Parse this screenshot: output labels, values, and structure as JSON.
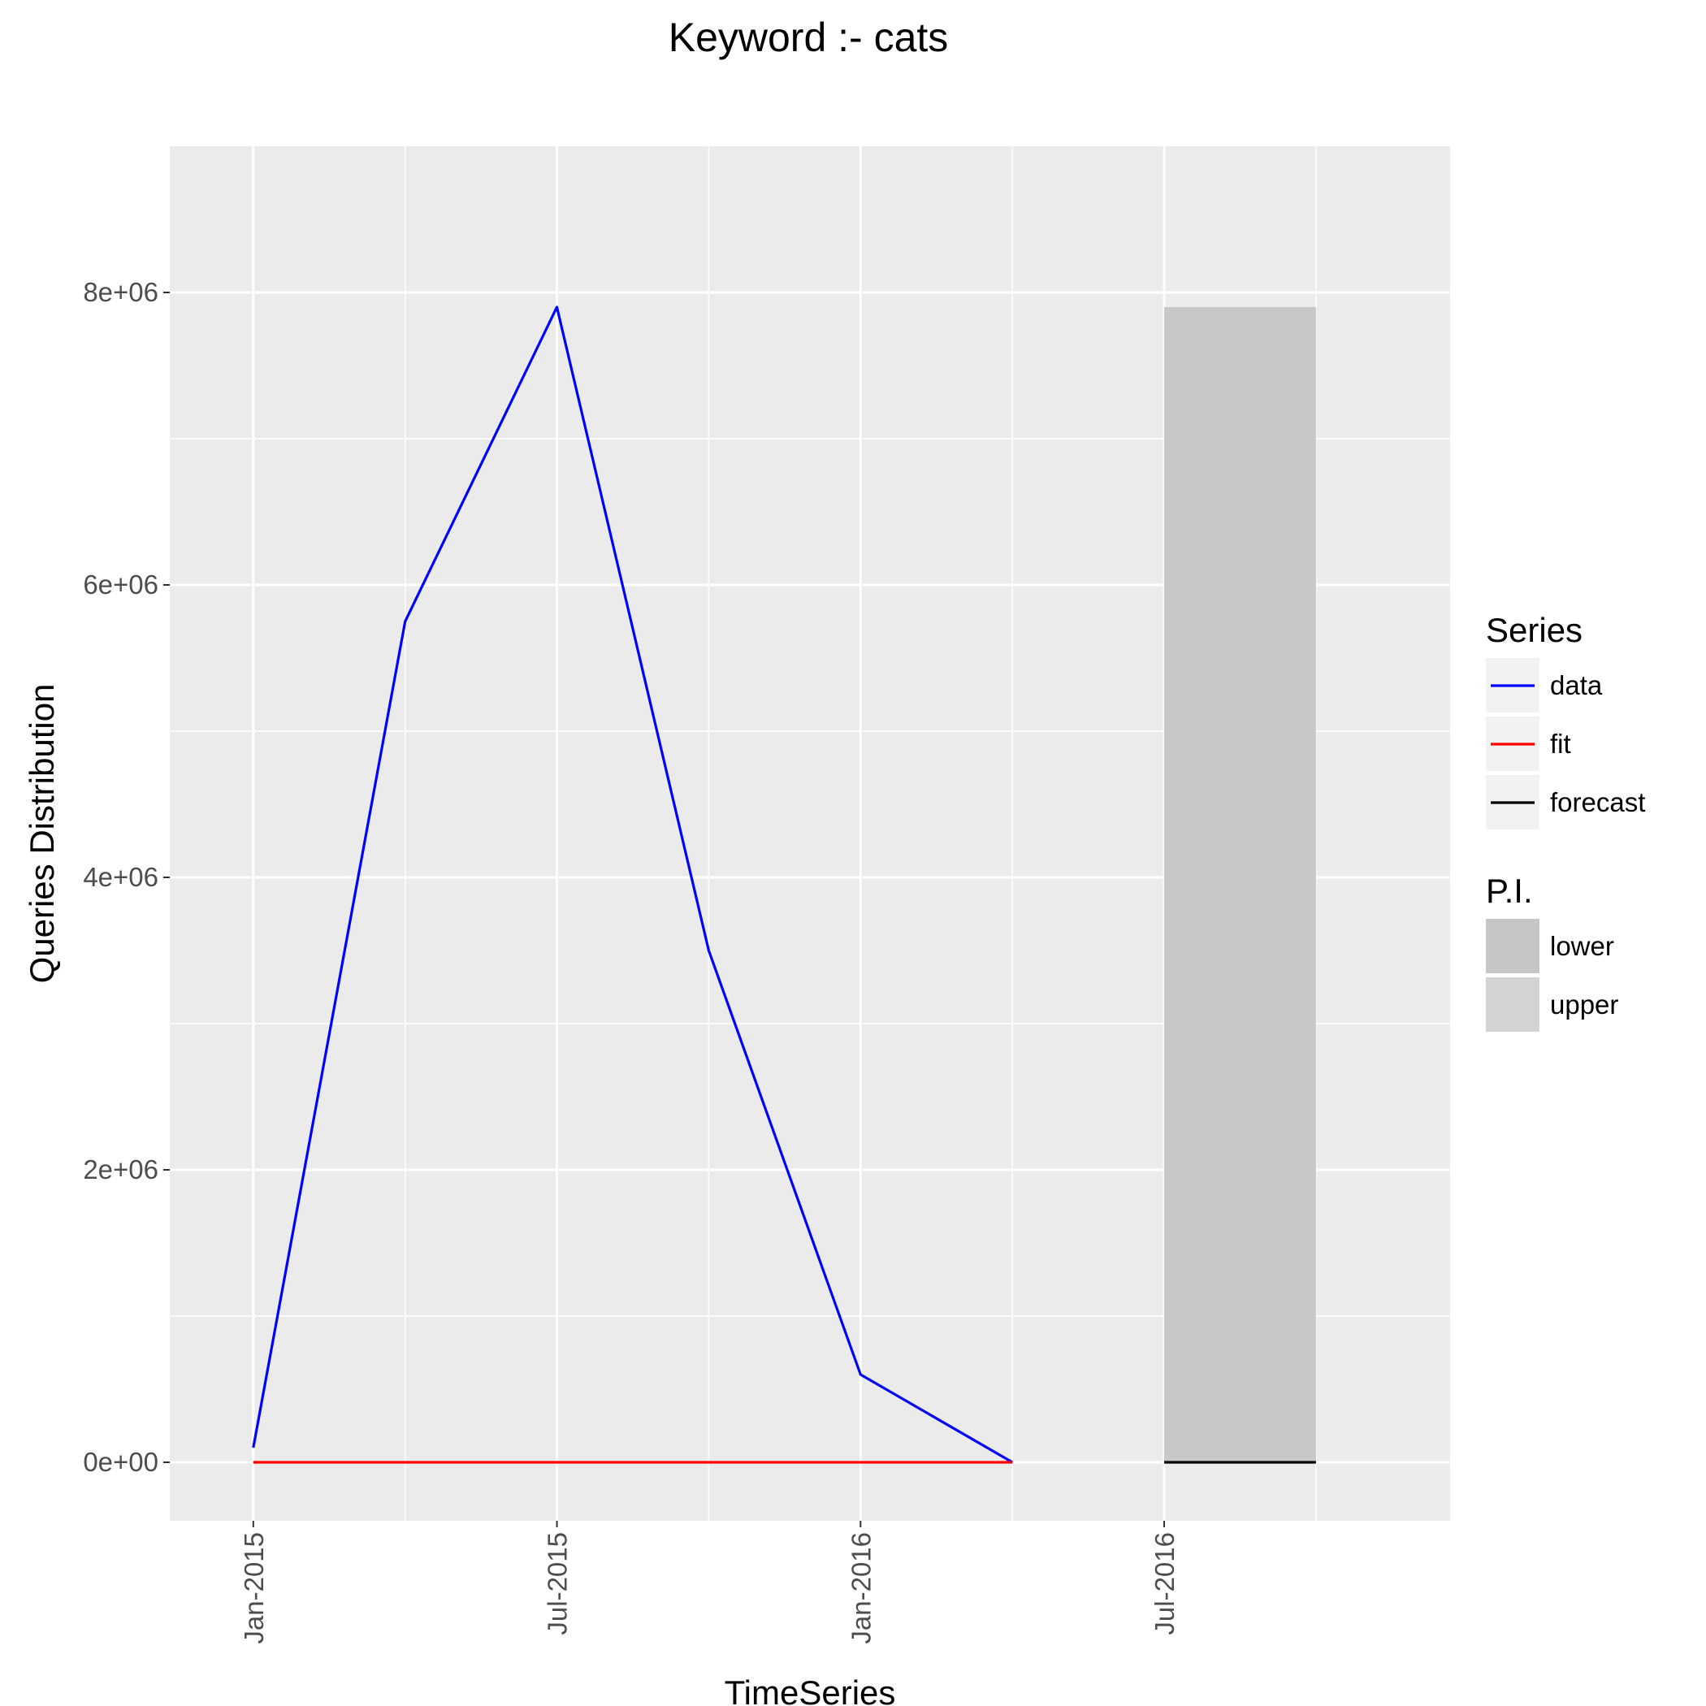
{
  "chart_data": {
    "type": "line",
    "title": "Keyword :- cats",
    "xlabel": "TimeSeries",
    "ylabel": "Queries Distribution",
    "x_ticks": [
      "Jan-2015",
      "Jul-2015",
      "Jan-2016",
      "Jul-2016"
    ],
    "x_tick_dates": [
      "2015-01",
      "2015-07",
      "2016-01",
      "2016-07"
    ],
    "y_ticks": [
      0,
      2000000,
      4000000,
      6000000,
      8000000
    ],
    "y_tick_labels": [
      "0e+00",
      "2e+06",
      "4e+06",
      "6e+06",
      "8e+06"
    ],
    "xlim": [
      "2014-11",
      "2016-12"
    ],
    "ylim": [
      -400000,
      9000000
    ],
    "grid": true,
    "legend_placement": "right",
    "series": [
      {
        "name": "data",
        "color": "#0000ff",
        "points": [
          {
            "x": "2015-01",
            "y": 100000
          },
          {
            "x": "2015-04",
            "y": 5750000
          },
          {
            "x": "2015-07",
            "y": 7900000
          },
          {
            "x": "2015-10",
            "y": 3500000
          },
          {
            "x": "2016-01",
            "y": 600000
          },
          {
            "x": "2016-04",
            "y": 0
          }
        ]
      },
      {
        "name": "fit",
        "color": "#ff0000",
        "points": [
          {
            "x": "2015-01",
            "y": 0
          },
          {
            "x": "2015-04",
            "y": 0
          },
          {
            "x": "2015-07",
            "y": 0
          },
          {
            "x": "2015-10",
            "y": 0
          },
          {
            "x": "2016-01",
            "y": 0
          },
          {
            "x": "2016-04",
            "y": 0
          }
        ]
      },
      {
        "name": "forecast",
        "color": "#000000",
        "points": [
          {
            "x": "2016-07",
            "y": 0
          },
          {
            "x": "2016-10",
            "y": 0
          }
        ]
      }
    ],
    "prediction_interval": {
      "x_start": "2016-07",
      "x_end": "2016-10",
      "lower": 0,
      "upper": 7900000
    },
    "legends": [
      {
        "title": "Series",
        "items": [
          {
            "label": "data",
            "kind": "line",
            "color": "#0000ff"
          },
          {
            "label": "fit",
            "kind": "line",
            "color": "#ff0000"
          },
          {
            "label": "forecast",
            "kind": "line",
            "color": "#000000"
          }
        ]
      },
      {
        "title": "P.I.",
        "items": [
          {
            "label": "lower",
            "kind": "fill",
            "color": "#c6c6c6"
          },
          {
            "label": "upper",
            "kind": "fill",
            "color": "#d3d3d3"
          }
        ]
      }
    ],
    "colors": {
      "panel_background": "#ebebeb",
      "grid": "#ffffff",
      "pi_fill": "#c8c8c8"
    }
  }
}
